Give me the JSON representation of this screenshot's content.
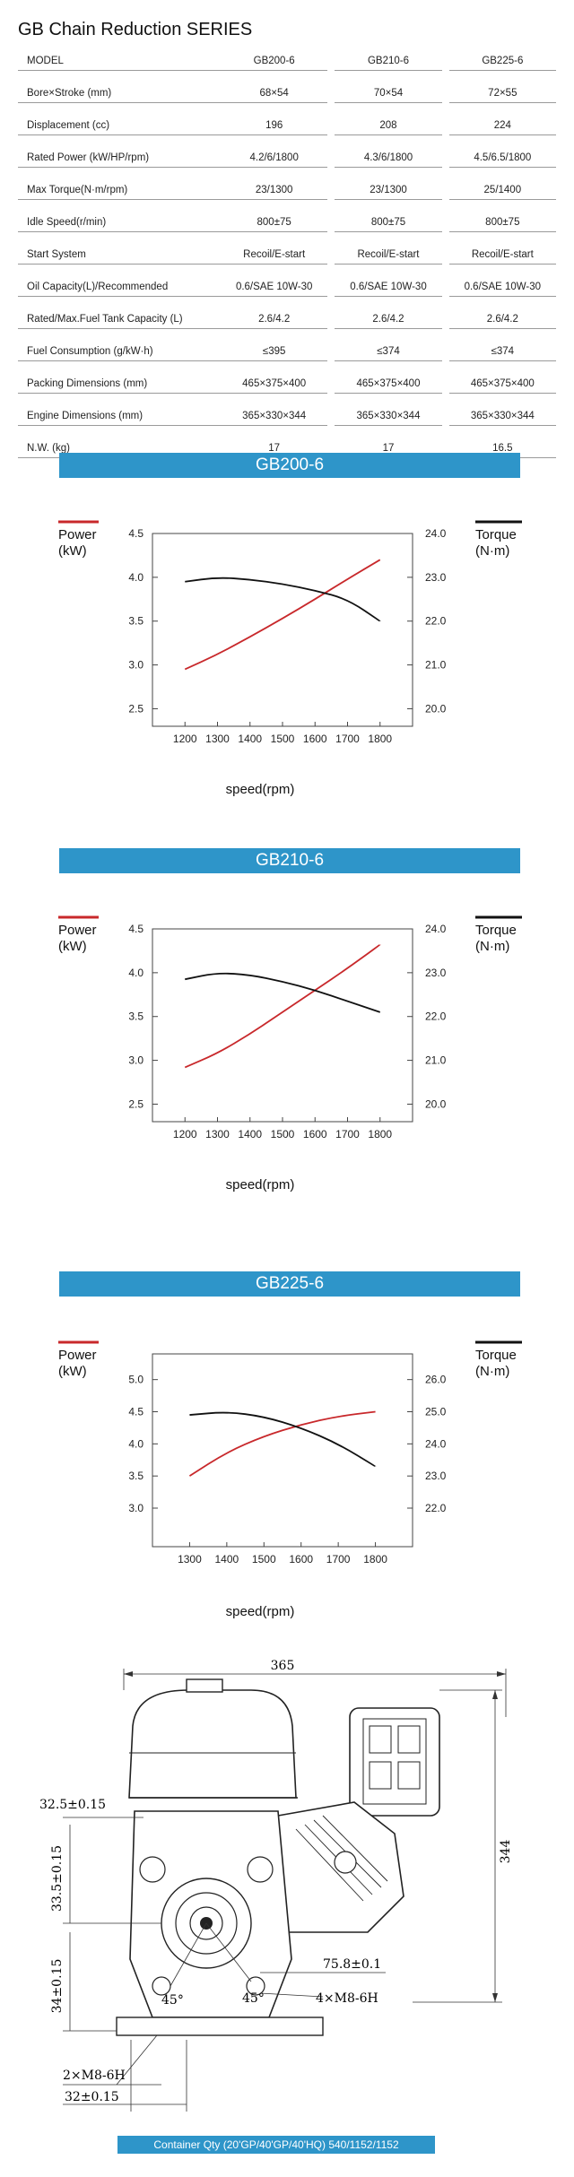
{
  "title": "GB Chain Reduction SERIES",
  "spec_table": {
    "header": {
      "label": "MODEL",
      "models": [
        "GB200-6",
        "GB210-6",
        "GB225-6"
      ]
    },
    "rows": [
      {
        "label": "Bore×Stroke (mm)",
        "values": [
          "68×54",
          "70×54",
          "72×55"
        ]
      },
      {
        "label": "Displacement (cc)",
        "values": [
          "196",
          "208",
          "224"
        ]
      },
      {
        "label": "Rated Power (kW/HP/rpm)",
        "values": [
          "4.2/6/1800",
          "4.3/6/1800",
          "4.5/6.5/1800"
        ]
      },
      {
        "label": "Max Torque(N·m/rpm)",
        "values": [
          "23/1300",
          "23/1300",
          "25/1400"
        ]
      },
      {
        "label": "Idle Speed(r/min)",
        "values": [
          "800±75",
          "800±75",
          "800±75"
        ]
      },
      {
        "label": "Start System",
        "values": [
          "Recoil/E-start",
          "Recoil/E-start",
          "Recoil/E-start"
        ]
      },
      {
        "label": "Oil Capacity(L)/Recommended",
        "values": [
          "0.6/SAE 10W-30",
          "0.6/SAE 10W-30",
          "0.6/SAE 10W-30"
        ]
      },
      {
        "label": "Rated/Max.Fuel Tank Capacity (L)",
        "values": [
          "2.6/4.2",
          "2.6/4.2",
          "2.6/4.2"
        ]
      },
      {
        "label": "Fuel Consumption (g/kW·h)",
        "values": [
          "≤395",
          "≤374",
          "≤374"
        ]
      },
      {
        "label": "Packing Dimensions (mm)",
        "values": [
          "465×375×400",
          "465×375×400",
          "465×375×400"
        ]
      },
      {
        "label": "Engine Dimensions (mm)",
        "values": [
          "365×330×344",
          "365×330×344",
          "365×330×344"
        ]
      },
      {
        "label": "N.W. (kg)",
        "values": [
          "17",
          "17",
          "16.5"
        ]
      }
    ]
  },
  "chart_data": [
    {
      "type": "line",
      "title": "GB200-6",
      "xlabel": "speed(rpm)",
      "power_axis_label": [
        "Power",
        "(kW)"
      ],
      "torque_axis_label": [
        "Torque",
        "(N·m)"
      ],
      "x": [
        1200,
        1300,
        1400,
        1500,
        1600,
        1700,
        1800
      ],
      "x_ticks": [
        "1200",
        "1300",
        "1400",
        "1500",
        "1600",
        "1700",
        "1800"
      ],
      "y_left_ticks": [
        "4.5",
        "4.0",
        "3.5",
        "3.0",
        "2.5"
      ],
      "y_right_ticks": [
        "24.0",
        "23.0",
        "22.0",
        "21.0",
        "20.0"
      ],
      "ylim_left": [
        2.3,
        4.5
      ],
      "ylim_right": [
        19.6,
        24.0
      ],
      "series": [
        {
          "axis": "left",
          "color": "#c8282b",
          "values": [
            2.95,
            3.12,
            3.32,
            3.53,
            3.75,
            3.98,
            4.2
          ]
        },
        {
          "axis": "right",
          "color": "#111111",
          "values": [
            22.9,
            23.0,
            22.95,
            22.85,
            22.7,
            22.5,
            22.0
          ]
        }
      ]
    },
    {
      "type": "line",
      "title": "GB210-6",
      "xlabel": "speed(rpm)",
      "power_axis_label": [
        "Power",
        "(kW)"
      ],
      "torque_axis_label": [
        "Torque",
        "(N·m)"
      ],
      "x": [
        1200,
        1300,
        1400,
        1500,
        1600,
        1700,
        1800
      ],
      "x_ticks": [
        "1200",
        "1300",
        "1400",
        "1500",
        "1600",
        "1700",
        "1800"
      ],
      "y_left_ticks": [
        "4.5",
        "4.0",
        "3.5",
        "3.0",
        "2.5"
      ],
      "y_right_ticks": [
        "24.0",
        "23.0",
        "22.0",
        "21.0",
        "20.0"
      ],
      "ylim_left": [
        2.3,
        4.5
      ],
      "ylim_right": [
        19.6,
        24.0
      ],
      "series": [
        {
          "axis": "left",
          "color": "#c8282b",
          "values": [
            2.92,
            3.08,
            3.3,
            3.55,
            3.8,
            4.05,
            4.32
          ]
        },
        {
          "axis": "right",
          "color": "#111111",
          "values": [
            22.85,
            23.0,
            22.95,
            22.8,
            22.6,
            22.35,
            22.1
          ]
        }
      ]
    },
    {
      "type": "line",
      "title": "GB225-6",
      "xlabel": "speed(rpm)",
      "power_axis_label": [
        "Power",
        "(kW)"
      ],
      "torque_axis_label": [
        "Torque",
        "(N·m)"
      ],
      "x": [
        1300,
        1400,
        1500,
        1600,
        1700,
        1800
      ],
      "x_ticks": [
        "1300",
        "1400",
        "1500",
        "1600",
        "1700",
        "1800"
      ],
      "y_left_ticks": [
        "5.0",
        "4.5",
        "4.0",
        "3.5",
        "3.0"
      ],
      "y_right_ticks": [
        "26.0",
        "25.0",
        "24.0",
        "23.0",
        "22.0"
      ],
      "ylim_left": [
        2.4,
        5.4
      ],
      "ylim_right": [
        20.8,
        26.8
      ],
      "series": [
        {
          "axis": "left",
          "color": "#c8282b",
          "values": [
            3.5,
            3.87,
            4.12,
            4.3,
            4.43,
            4.5
          ]
        },
        {
          "axis": "right",
          "color": "#111111",
          "values": [
            24.9,
            25.0,
            24.85,
            24.5,
            24.0,
            23.3
          ]
        }
      ]
    }
  ],
  "drawing": {
    "dim_width": "365",
    "dim_height": "344",
    "dim_a": "32.5±0.15",
    "dim_b": "33.5±0.15",
    "dim_c": "34±0.15",
    "dim_d": "75.8±0.1",
    "dim_e": "4×M8-6H",
    "dim_f": "2×M8-6H",
    "dim_g": "32±0.15",
    "angle_1": "45°",
    "angle_2": "45°"
  },
  "footer": "Container Qty (20'GP/40'GP/40'HQ) 540/1152/1152"
}
